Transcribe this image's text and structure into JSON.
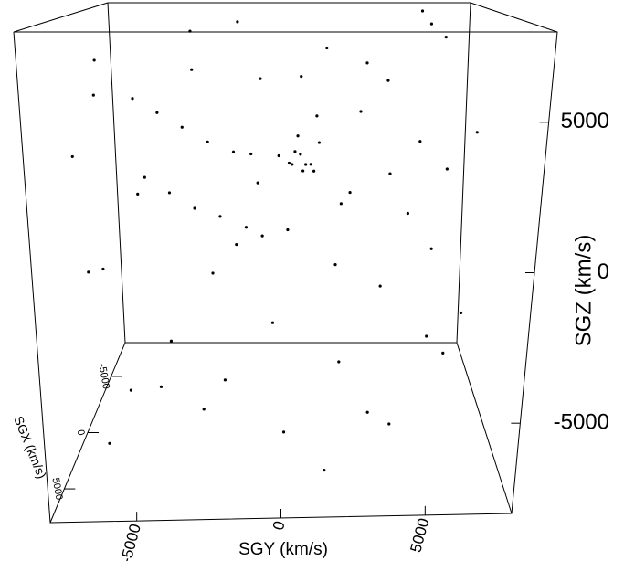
{
  "chart_data": {
    "type": "scatter3d",
    "xlabel": "SGX (km/s)",
    "ylabel": "SGY (km/s)",
    "zlabel": "SGZ (km/s)",
    "xlim": [
      -8000,
      8000
    ],
    "ylim": [
      -8000,
      8000
    ],
    "zlim": [
      -8000,
      8000
    ],
    "xticks": [
      -5000,
      0,
      5000
    ],
    "yticks": [
      -5000,
      0,
      5000
    ],
    "zticks": [
      -5000,
      0,
      5000
    ],
    "color": "#000000",
    "points": [
      [
        -1000,
        500,
        2500
      ],
      [
        -500,
        700,
        2200
      ],
      [
        0,
        300,
        2800
      ],
      [
        -1500,
        900,
        2000
      ],
      [
        500,
        200,
        2400
      ],
      [
        -800,
        1200,
        3000
      ],
      [
        -200,
        -300,
        2600
      ],
      [
        -1200,
        600,
        1800
      ],
      [
        300,
        1000,
        2100
      ],
      [
        -600,
        400,
        3300
      ],
      [
        -3000,
        5500,
        7500
      ],
      [
        -2500,
        6000,
        7000
      ],
      [
        -3500,
        5200,
        8000
      ],
      [
        -2000,
        -5000,
        4000
      ],
      [
        -1500,
        -4000,
        3500
      ],
      [
        -1000,
        -3000,
        3000
      ],
      [
        -2500,
        -6000,
        4500
      ],
      [
        -500,
        -2000,
        2700
      ],
      [
        -1000,
        -4500,
        1000
      ],
      [
        -500,
        -3500,
        500
      ],
      [
        0,
        -2500,
        300
      ],
      [
        -1500,
        -5500,
        1500
      ],
      [
        500,
        -1500,
        0
      ],
      [
        -2000,
        -1000,
        -1000
      ],
      [
        -1500,
        -2000,
        -1200
      ],
      [
        -2500,
        0,
        -900
      ],
      [
        -1000,
        5000,
        3000
      ],
      [
        -500,
        6000,
        2000
      ],
      [
        0,
        5500,
        -1000
      ],
      [
        -2000,
        4000,
        1500
      ],
      [
        3000,
        -3000,
        -6000
      ],
      [
        4000,
        0,
        -6500
      ],
      [
        5000,
        3000,
        -5500
      ],
      [
        2000,
        4000,
        -7000
      ],
      [
        6000,
        -2000,
        -4000
      ],
      [
        3500,
        -4500,
        -5000
      ],
      [
        1000,
        -6000,
        -6000
      ],
      [
        5000,
        1500,
        -7500
      ],
      [
        2500,
        2000,
        -4500
      ],
      [
        4500,
        5000,
        -3000
      ],
      [
        -3000,
        -7500,
        6000
      ],
      [
        0,
        -7000,
        5000
      ],
      [
        2000,
        -7500,
        3000
      ],
      [
        -1000,
        -7200,
        -2000
      ],
      [
        3000,
        -7000,
        -1000
      ],
      [
        -4000,
        -2000,
        7500
      ],
      [
        -3000,
        1500,
        6500
      ],
      [
        -2000,
        3000,
        6000
      ],
      [
        -5000,
        -4000,
        7000
      ],
      [
        -1000,
        -1000,
        5500
      ],
      [
        -4000,
        4000,
        5000
      ],
      [
        1000,
        2000,
        1000
      ],
      [
        2000,
        -1000,
        2000
      ],
      [
        -3000,
        2500,
        500
      ],
      [
        1500,
        3500,
        -2000
      ],
      [
        -2000,
        -3000,
        -2500
      ],
      [
        4000,
        -5000,
        2000
      ],
      [
        3000,
        6500,
        4000
      ],
      [
        -4500,
        2000,
        -3000
      ],
      [
        1000,
        -500,
        -3500
      ],
      [
        -6000,
        0,
        1000
      ],
      [
        -5000,
        3000,
        3500
      ],
      [
        6000,
        1000,
        5000
      ],
      [
        5000,
        -3000,
        6500
      ],
      [
        2500,
        500,
        6000
      ],
      [
        -3500,
        -1500,
        2000
      ],
      [
        500,
        4500,
        500
      ],
      [
        -1500,
        7000,
        -4000
      ],
      [
        0,
        -4500,
        -4500
      ],
      [
        3500,
        -6500,
        -7000
      ],
      [
        -2500,
        6500,
        -6000
      ]
    ]
  }
}
